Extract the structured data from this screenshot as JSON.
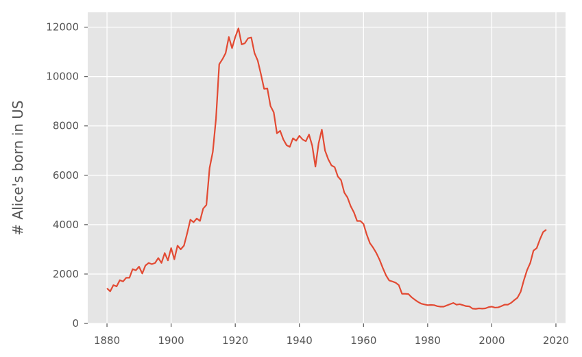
{
  "chart_data": {
    "type": "line",
    "title": "",
    "xlabel": "",
    "ylabel": "# Alice's born in US",
    "xlim": [
      1874,
      2023
    ],
    "ylim": [
      0,
      12600
    ],
    "xticks": [
      1880,
      1900,
      1920,
      1940,
      1960,
      1980,
      2000,
      2020
    ],
    "yticks": [
      0,
      2000,
      4000,
      6000,
      8000,
      10000,
      12000
    ],
    "grid": true,
    "legend": "none",
    "colors": {
      "line": "#e24a33",
      "plot_bg": "#e5e5e5",
      "grid": "#ffffff",
      "text": "#555555"
    },
    "series": [
      {
        "x": [
          1880,
          1881,
          1882,
          1883,
          1884,
          1885,
          1886,
          1887,
          1888,
          1889,
          1890,
          1891,
          1892,
          1893,
          1894,
          1895,
          1896,
          1897,
          1898,
          1899,
          1900,
          1901,
          1902,
          1903,
          1904,
          1905,
          1906,
          1907,
          1908,
          1909,
          1910,
          1911,
          1912,
          1913,
          1914,
          1915,
          1916,
          1917,
          1918,
          1919,
          1920,
          1921,
          1922,
          1923,
          1924,
          1925,
          1926,
          1927,
          1928,
          1929,
          1930,
          1931,
          1932,
          1933,
          1934,
          1935,
          1936,
          1937,
          1938,
          1939,
          1940,
          1941,
          1942,
          1943,
          1944,
          1945,
          1946,
          1947,
          1948,
          1949,
          1950,
          1951,
          1952,
          1953,
          1954,
          1955,
          1956,
          1957,
          1958,
          1959,
          1960,
          1961,
          1962,
          1963,
          1964,
          1965,
          1966,
          1967,
          1968,
          1969,
          1970,
          1971,
          1972,
          1973,
          1974,
          1975,
          1976,
          1977,
          1978,
          1979,
          1980,
          1981,
          1982,
          1983,
          1984,
          1985,
          1986,
          1987,
          1988,
          1989,
          1990,
          1991,
          1992,
          1993,
          1994,
          1995,
          1996,
          1997,
          1998,
          1999,
          2000,
          2001,
          2002,
          2003,
          2004,
          2005,
          2006,
          2007,
          2008,
          2009,
          2010,
          2011,
          2012,
          2013,
          2014,
          2015,
          2016,
          2017
        ],
        "y": [
          1420,
          1300,
          1550,
          1500,
          1750,
          1700,
          1850,
          1850,
          2200,
          2150,
          2300,
          2020,
          2350,
          2450,
          2400,
          2450,
          2650,
          2450,
          2850,
          2550,
          3050,
          2600,
          3150,
          3000,
          3150,
          3650,
          4200,
          4100,
          4250,
          4150,
          4650,
          4800,
          6300,
          6950,
          8300,
          10500,
          10700,
          10950,
          11600,
          11150,
          11600,
          11950,
          11300,
          11350,
          11550,
          11580,
          10950,
          10650,
          10100,
          9500,
          9520,
          8800,
          8550,
          7700,
          7800,
          7450,
          7220,
          7150,
          7500,
          7400,
          7600,
          7450,
          7380,
          7650,
          7200,
          6350,
          7300,
          7850,
          7000,
          6650,
          6400,
          6330,
          5950,
          5800,
          5300,
          5100,
          4750,
          4500,
          4150,
          4150,
          4030,
          3600,
          3250,
          3070,
          2850,
          2580,
          2250,
          1950,
          1740,
          1700,
          1650,
          1550,
          1200,
          1200,
          1190,
          1060,
          960,
          870,
          800,
          770,
          740,
          750,
          740,
          700,
          680,
          680,
          730,
          780,
          830,
          760,
          780,
          740,
          700,
          690,
          600,
          590,
          610,
          600,
          610,
          660,
          680,
          640,
          650,
          700,
          760,
          760,
          830,
          940,
          1040,
          1280,
          1750,
          2160,
          2450,
          2950,
          3050,
          3400,
          3700,
          3800
        ]
      }
    ]
  }
}
